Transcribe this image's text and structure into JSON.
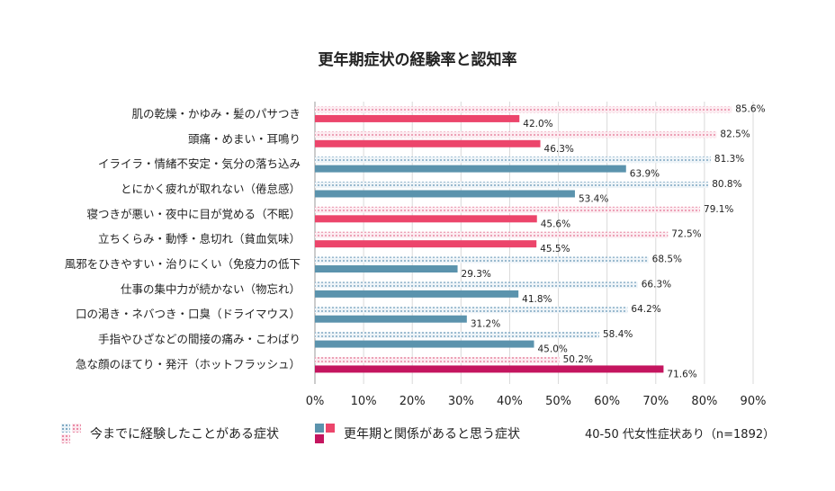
{
  "chart_data": {
    "type": "bar",
    "orientation": "horizontal",
    "title": "更年期症状の経験率と認知率",
    "categories": [
      "肌の乾燥・かゆみ・髪のパサつき",
      "頭痛・めまい・耳鳴り",
      "イライラ・情緒不安定・気分の落ち込み",
      "とにかく疲れが取れない（倦怠感）",
      "寝つきが悪い・夜中に目が覚める（不眠）",
      "立ちくらみ・動悸・息切れ（貧血気味）",
      "風邪をひきやすい・治りにくい（免疫力の低下",
      "仕事の集中力が続かない（物忘れ）",
      "口の渇き・ネバつき・口臭（ドライマウス）",
      "手指やひざなどの間接の痛み・こわばり",
      "急な顔のほてり・発汗（ホットフラッシュ）"
    ],
    "series": [
      {
        "name": "今までに経験したことがある症状",
        "values": [
          85.6,
          82.5,
          81.3,
          80.8,
          79.1,
          72.5,
          68.5,
          66.3,
          64.2,
          58.4,
          50.2
        ],
        "labels": [
          "85.6%",
          "82.5%",
          "81.3%",
          "80.8%",
          "79.1%",
          "72.5%",
          "68.5%",
          "66.3%",
          "64.2%",
          "58.4%",
          "50.2%"
        ]
      },
      {
        "name": "更年期と関係があると思う症状",
        "values": [
          42.0,
          46.3,
          63.9,
          53.4,
          45.6,
          45.5,
          29.3,
          41.8,
          31.2,
          45.0,
          71.6
        ],
        "labels": [
          "42.0%",
          "46.3%",
          "63.9%",
          "53.4%",
          "45.6%",
          "45.5%",
          "29.3%",
          "41.8%",
          "31.2%",
          "45.0%",
          "71.6%"
        ]
      }
    ],
    "bar_colors": [
      "pink",
      "pink",
      "blue",
      "blue",
      "pink",
      "pink",
      "blue",
      "blue",
      "blue",
      "blue",
      "magenta"
    ],
    "colors": {
      "blue": "#5b93ad",
      "pink": "#ec456b",
      "magenta": "#c4155f",
      "blue_pattern": "#7fa8c2",
      "pink_pattern": "#e98aa5",
      "grid": "#d9d9d9"
    },
    "xlim": [
      0,
      90
    ],
    "xticks": [
      "0%",
      "10%",
      "20%",
      "30%",
      "40%",
      "50%",
      "60%",
      "70%",
      "80%",
      "90%"
    ],
    "grid": true,
    "legend_position": "bottom"
  },
  "legend": {
    "series1_label": "今までに経験したことがある症状",
    "series2_label": "更年期と関係があると思う症状",
    "note": "40-50 代女性症状あり（n=1892）"
  }
}
